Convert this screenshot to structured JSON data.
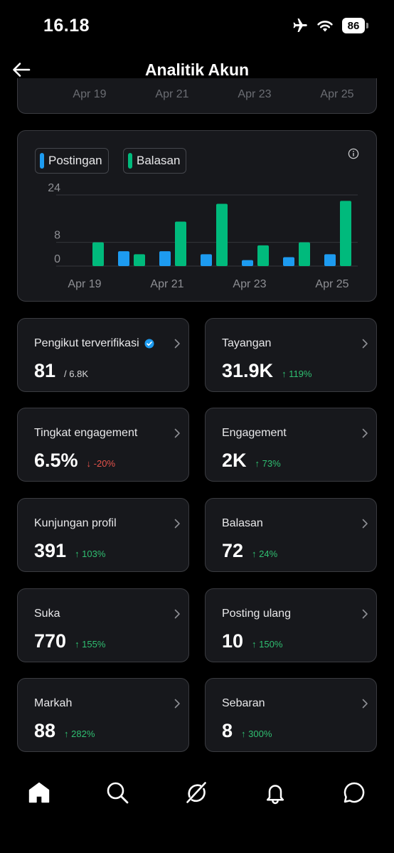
{
  "status": {
    "time": "16.18",
    "battery": "86"
  },
  "header": {
    "title": "Analitik Akun"
  },
  "prev_chart": {
    "ticks": [
      "Apr 19",
      "Apr 21",
      "Apr 23",
      "Apr 25"
    ]
  },
  "legend": {
    "series1": "Postingan",
    "series2": "Balasan"
  },
  "colors": {
    "postingan": "#1d9bf0",
    "balasan": "#00ba7c",
    "up": "#2fbf71",
    "down": "#e5534b"
  },
  "chart_data": {
    "type": "bar",
    "categories": [
      "Apr 19",
      "Apr 20",
      "Apr 21",
      "Apr 22",
      "Apr 23",
      "Apr 24",
      "Apr 25"
    ],
    "series": [
      {
        "name": "Postingan",
        "values": [
          0,
          5,
          5,
          4,
          2,
          3,
          4
        ]
      },
      {
        "name": "Balasan",
        "values": [
          8,
          4,
          15,
          21,
          7,
          8,
          22
        ]
      }
    ],
    "ylim": [
      0,
      24
    ],
    "yticks": [
      "24",
      "8",
      "0"
    ],
    "xticks": [
      "Apr 19",
      "Apr 21",
      "Apr 23",
      "Apr 25"
    ],
    "grid": true,
    "legend": "top-left"
  },
  "metrics": [
    {
      "label": "Pengikut terverifikasi",
      "value": "81",
      "sub": "/ 6.8K"
    },
    {
      "label": "Tayangan",
      "value": "31.9K",
      "change": "↑ 119%"
    },
    {
      "label": "Tingkat engagement",
      "value": "6.5%",
      "change": "↓ -20%"
    },
    {
      "label": "Engagement",
      "value": "2K",
      "change": "↑ 73%"
    },
    {
      "label": "Kunjungan profil",
      "value": "391",
      "change": "↑ 103%"
    },
    {
      "label": "Balasan",
      "value": "72",
      "change": "↑ 24%"
    },
    {
      "label": "Suka",
      "value": "770",
      "change": "↑ 155%"
    },
    {
      "label": "Posting ulang",
      "value": "10",
      "change": "↑ 150%"
    },
    {
      "label": "Markah",
      "value": "88",
      "change": "↑ 282%"
    },
    {
      "label": "Sebaran",
      "value": "8",
      "change": "↑ 300%"
    }
  ],
  "tabs": [
    "home-icon",
    "search-icon",
    "grok-icon",
    "bell-icon",
    "messages-icon"
  ]
}
